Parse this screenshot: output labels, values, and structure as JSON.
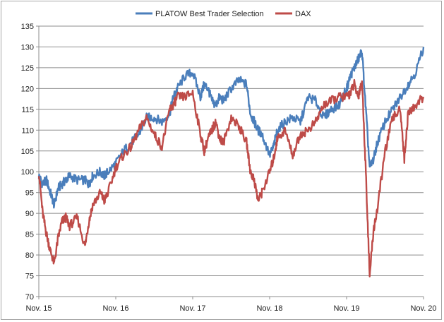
{
  "chart_data": {
    "type": "line",
    "title": "",
    "xlabel": "",
    "ylabel": "",
    "ylim": [
      70,
      135
    ],
    "yticks": [
      70,
      75,
      80,
      85,
      90,
      95,
      100,
      105,
      110,
      115,
      120,
      125,
      130,
      135
    ],
    "xticks": [
      "Nov. 15",
      "Nov. 16",
      "Nov. 17",
      "Nov. 18",
      "Nov. 19",
      "Nov. 20"
    ],
    "grid": true,
    "legend_position": "top",
    "x_unit": "years since Nov. 15",
    "series": [
      {
        "name": "PLATOW Best Trader Selection",
        "color": "#4a7ebb",
        "x": [
          0,
          0.05,
          0.1,
          0.15,
          0.2,
          0.25,
          0.3,
          0.35,
          0.4,
          0.5,
          0.6,
          0.65,
          0.7,
          0.8,
          0.85,
          0.9,
          1.0,
          1.1,
          1.2,
          1.3,
          1.4,
          1.5,
          1.6,
          1.7,
          1.75,
          1.8,
          1.9,
          2.0,
          2.1,
          2.15,
          2.2,
          2.25,
          2.3,
          2.35,
          2.4,
          2.5,
          2.6,
          2.7,
          2.75,
          2.8,
          2.85,
          2.9,
          3.0,
          3.05,
          3.1,
          3.2,
          3.3,
          3.4,
          3.5,
          3.6,
          3.7,
          3.8,
          3.9,
          4.0,
          4.05,
          4.1,
          4.15,
          4.2,
          4.25,
          4.3,
          4.35,
          4.4,
          4.5,
          4.6,
          4.7,
          4.8,
          4.9,
          5.0
        ],
        "values": [
          99,
          97,
          98,
          95,
          92,
          96,
          97,
          98,
          99,
          98,
          98,
          97,
          99,
          100,
          99,
          100,
          102,
          105,
          107,
          109,
          113,
          113,
          112,
          114,
          118,
          120,
          123,
          124,
          118,
          121,
          120,
          117,
          116,
          118,
          117,
          120,
          122,
          121,
          114,
          112,
          110,
          109,
          104,
          106,
          110,
          112,
          113,
          112,
          118,
          117,
          113,
          115,
          116,
          120,
          123,
          125,
          127,
          129,
          115,
          101,
          103,
          107,
          112,
          115,
          118,
          121,
          124,
          130
        ]
      },
      {
        "name": "DAX",
        "color": "#be4b48",
        "x": [
          0,
          0.05,
          0.1,
          0.15,
          0.2,
          0.25,
          0.3,
          0.35,
          0.4,
          0.5,
          0.6,
          0.65,
          0.7,
          0.8,
          0.85,
          0.9,
          1.0,
          1.1,
          1.2,
          1.3,
          1.4,
          1.5,
          1.6,
          1.7,
          1.75,
          1.8,
          1.9,
          2.0,
          2.1,
          2.15,
          2.2,
          2.25,
          2.3,
          2.35,
          2.4,
          2.5,
          2.6,
          2.7,
          2.75,
          2.8,
          2.85,
          2.9,
          3.0,
          3.05,
          3.1,
          3.2,
          3.3,
          3.4,
          3.5,
          3.6,
          3.7,
          3.8,
          3.9,
          4.0,
          4.05,
          4.1,
          4.15,
          4.2,
          4.25,
          4.3,
          4.35,
          4.4,
          4.5,
          4.6,
          4.7,
          4.75,
          4.8,
          4.9,
          5.0
        ],
        "values": [
          100,
          90,
          85,
          81,
          78,
          84,
          88,
          89,
          87,
          89,
          82,
          88,
          92,
          95,
          93,
          95,
          101,
          104,
          106,
          110,
          113,
          109,
          106,
          115,
          116,
          118,
          118,
          119,
          109,
          105,
          108,
          110,
          112,
          108,
          107,
          113,
          111,
          107,
          100,
          98,
          93,
          95,
          100,
          103,
          108,
          110,
          104,
          109,
          110,
          112,
          116,
          117,
          118,
          118,
          119,
          121,
          118,
          122,
          100,
          75,
          86,
          91,
          105,
          113,
          115,
          103,
          114,
          116,
          118
        ]
      }
    ]
  }
}
